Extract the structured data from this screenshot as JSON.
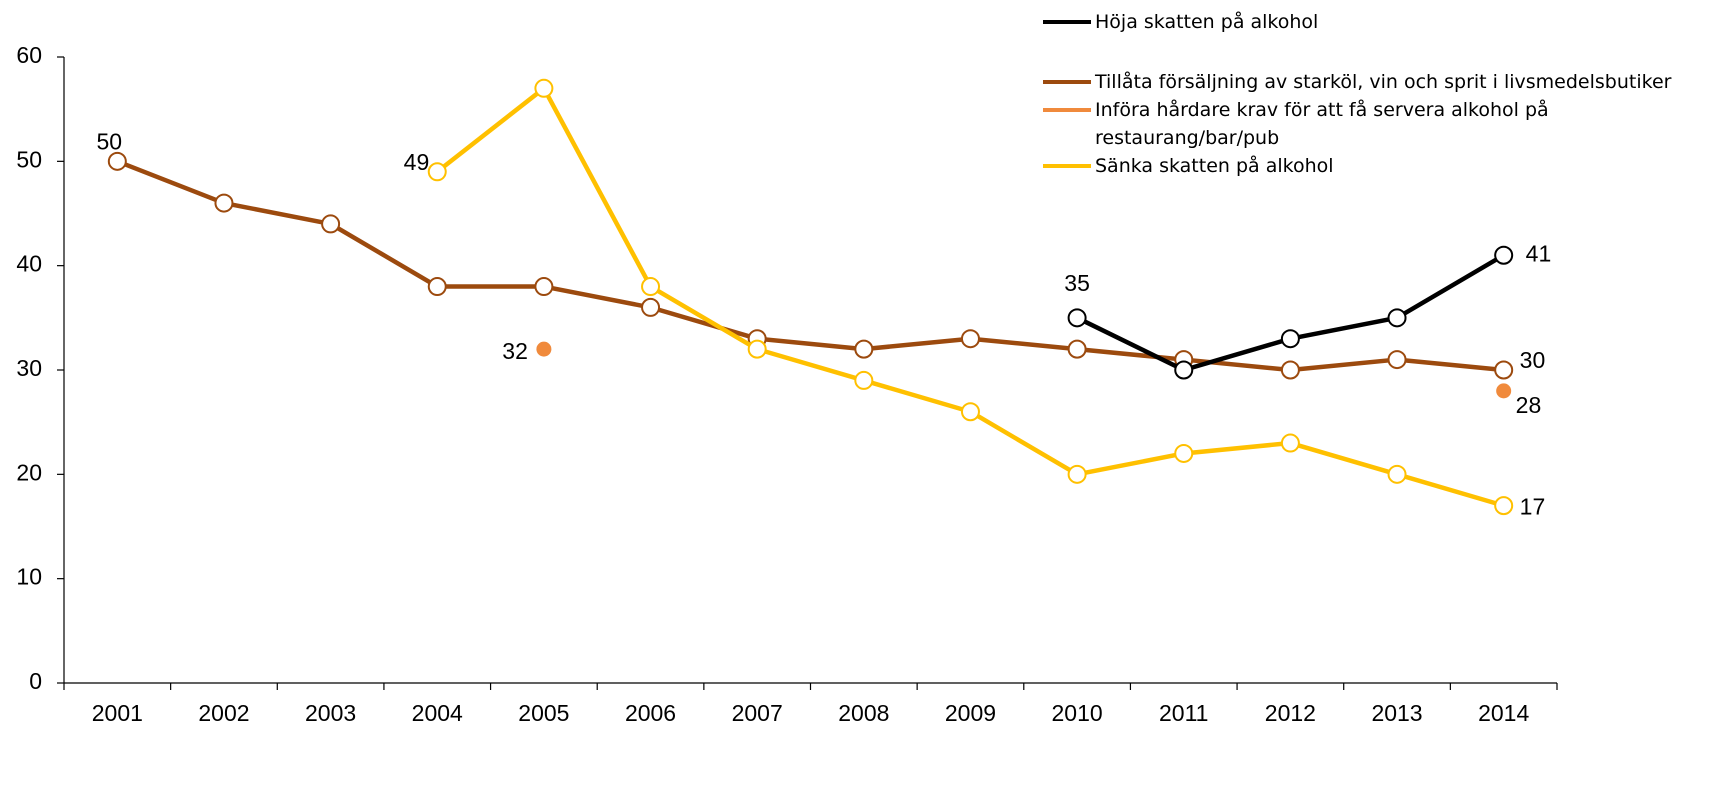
{
  "chart_data": {
    "type": "line",
    "categories": [
      "2001",
      "2002",
      "2003",
      "2004",
      "2005",
      "2006",
      "2007",
      "2008",
      "2009",
      "2010",
      "2011",
      "2012",
      "2013",
      "2014"
    ],
    "ylim": [
      0,
      60
    ],
    "yticks": [
      0,
      10,
      20,
      30,
      40,
      50,
      60
    ],
    "grid": false,
    "legend": "top-right",
    "series": [
      {
        "name": "Höja skatten på alkohol",
        "color": "#000000",
        "markers": "open",
        "values": [
          null,
          null,
          null,
          null,
          null,
          null,
          null,
          null,
          null,
          35,
          30,
          33,
          35,
          41
        ],
        "labels": [
          9,
          13
        ]
      },
      {
        "name": "Tillåta försäljning av starköl, vin och sprit i livsmedelsbutiker",
        "color": "#9c4a0e",
        "markers": "open",
        "values": [
          50,
          46,
          44,
          38,
          38,
          36,
          33,
          32,
          33,
          32,
          31,
          30,
          31,
          30
        ],
        "labels": [
          0,
          13
        ]
      },
      {
        "name": "Införa hårdare krav för att få servera alkohol på restaurang/bar/pub",
        "color": "#f08a3c",
        "markers": "filled",
        "values": [
          null,
          null,
          null,
          null,
          32,
          null,
          null,
          null,
          null,
          null,
          null,
          null,
          null,
          28
        ],
        "labels": [
          4,
          13
        ]
      },
      {
        "name": "Sänka skatten på alkohol",
        "color": "#ffc000",
        "markers": "open",
        "values": [
          null,
          null,
          null,
          49,
          57,
          38,
          32,
          29,
          26,
          20,
          22,
          23,
          20,
          17
        ],
        "labels": [
          3,
          13
        ]
      }
    ]
  }
}
